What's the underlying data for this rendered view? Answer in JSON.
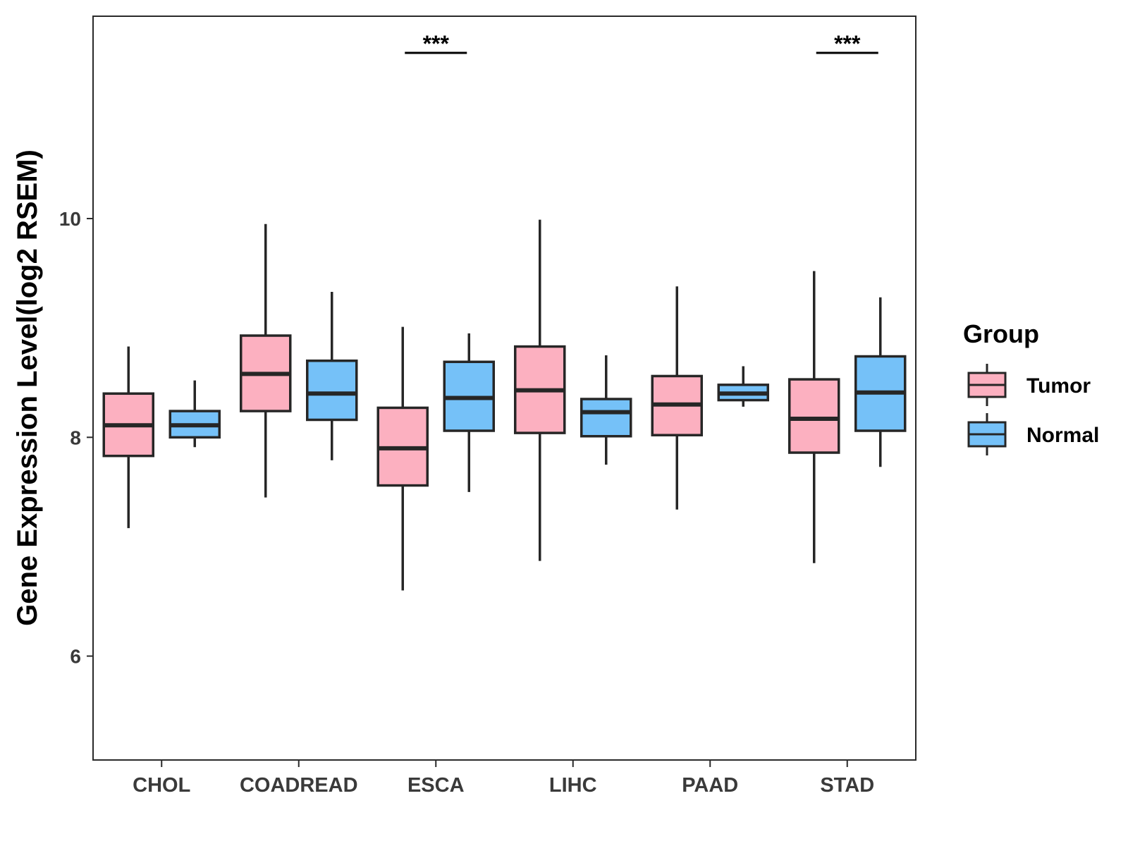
{
  "chart_data": {
    "type": "boxplot",
    "title": "",
    "xlabel": "",
    "ylabel": "Gene Expression Level(log2 RSEM)",
    "ylim": [
      5.05,
      11.85
    ],
    "yticks": [
      6,
      8,
      10
    ],
    "categories": [
      "CHOL",
      "COADREAD",
      "ESCA",
      "LIHC",
      "PAAD",
      "STAD"
    ],
    "legend": {
      "title": "Group",
      "position": "right"
    },
    "series": [
      {
        "name": "Tumor",
        "color": "#FCB0C0",
        "boxes": [
          {
            "min": 7.17,
            "q1": 7.83,
            "median": 8.11,
            "q3": 8.4,
            "max": 8.83
          },
          {
            "min": 7.45,
            "q1": 8.24,
            "median": 8.58,
            "q3": 8.93,
            "max": 9.95
          },
          {
            "min": 6.6,
            "q1": 7.56,
            "median": 7.9,
            "q3": 8.27,
            "max": 9.01
          },
          {
            "min": 6.87,
            "q1": 8.04,
            "median": 8.43,
            "q3": 8.83,
            "max": 9.99
          },
          {
            "min": 7.34,
            "q1": 8.02,
            "median": 8.3,
            "q3": 8.56,
            "max": 9.38
          },
          {
            "min": 6.85,
            "q1": 7.86,
            "median": 8.17,
            "q3": 8.53,
            "max": 9.52
          }
        ]
      },
      {
        "name": "Normal",
        "color": "#75C1F8",
        "boxes": [
          {
            "min": 7.91,
            "q1": 8.0,
            "median": 8.11,
            "q3": 8.24,
            "max": 8.52
          },
          {
            "min": 7.79,
            "q1": 8.16,
            "median": 8.4,
            "q3": 8.7,
            "max": 9.33
          },
          {
            "min": 7.5,
            "q1": 8.06,
            "median": 8.36,
            "q3": 8.69,
            "max": 8.95
          },
          {
            "min": 7.75,
            "q1": 8.01,
            "median": 8.23,
            "q3": 8.35,
            "max": 8.75
          },
          {
            "min": 8.28,
            "q1": 8.34,
            "median": 8.4,
            "q3": 8.48,
            "max": 8.65
          },
          {
            "min": 7.73,
            "q1": 8.06,
            "median": 8.41,
            "q3": 8.74,
            "max": 9.28
          }
        ]
      }
    ],
    "annotations": [
      {
        "category": "ESCA",
        "label": "***"
      },
      {
        "category": "STAD",
        "label": "***"
      }
    ]
  }
}
